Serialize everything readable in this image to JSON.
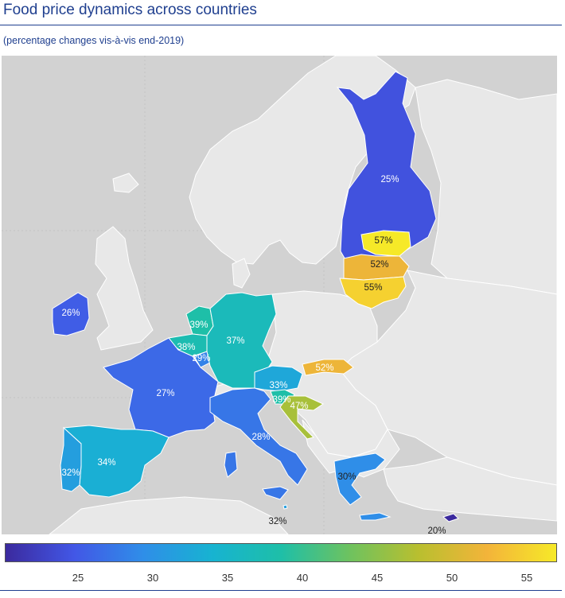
{
  "header": {
    "title": "Food price dynamics across countries",
    "subtitle": "(percentage changes vis-à-vis end-2019)"
  },
  "colors": {
    "title_blue": "#1f3f8f",
    "sea": "#d2d2d2",
    "land": "#eaeaea",
    "colormap": [
      "#3b2a9e",
      "#4257e6",
      "#2f8ee8",
      "#17b3d1",
      "#1ebfa8",
      "#6ec25f",
      "#b9bf2f",
      "#f3b43a",
      "#f6e928"
    ]
  },
  "legend": {
    "min": 21,
    "max": 57,
    "ticks": [
      "25",
      "30",
      "35",
      "40",
      "45",
      "50",
      "55"
    ]
  },
  "map": {
    "countries": [
      {
        "name": "Finland",
        "value": 25,
        "label": "25%"
      },
      {
        "name": "Estonia",
        "value": 57,
        "label": "57%"
      },
      {
        "name": "Latvia",
        "value": 52,
        "label": "52%"
      },
      {
        "name": "Lithuania",
        "value": 55,
        "label": "55%"
      },
      {
        "name": "Ireland",
        "value": 26,
        "label": "26%"
      },
      {
        "name": "Netherlands",
        "value": 39,
        "label": "39%"
      },
      {
        "name": "Belgium",
        "value": 38,
        "label": "38%"
      },
      {
        "name": "Luxembourg",
        "value": 29,
        "label": "29%"
      },
      {
        "name": "Germany",
        "value": 37,
        "label": "37%"
      },
      {
        "name": "France",
        "value": 27,
        "label": "27%"
      },
      {
        "name": "Austria",
        "value": 33,
        "label": "33%"
      },
      {
        "name": "Slovakia",
        "value": 52,
        "label": "52%"
      },
      {
        "name": "Slovenia",
        "value": 39,
        "label": "39%"
      },
      {
        "name": "Croatia",
        "value": 47,
        "label": "47%"
      },
      {
        "name": "Italy",
        "value": 28,
        "label": "28%"
      },
      {
        "name": "Spain",
        "value": 34,
        "label": "34%"
      },
      {
        "name": "Portugal",
        "value": 32,
        "label": "32%"
      },
      {
        "name": "Greece",
        "value": 30,
        "label": "30%"
      },
      {
        "name": "Malta",
        "value": 32,
        "label": "32%"
      },
      {
        "name": "Cyprus",
        "value": 20,
        "label": "20%"
      }
    ]
  }
}
